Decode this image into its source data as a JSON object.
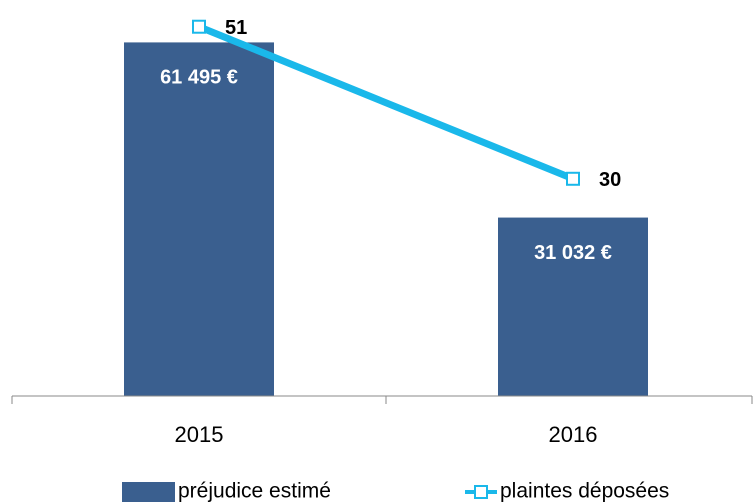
{
  "chart_data": {
    "type": "bar-line",
    "categories": [
      "2015",
      "2016"
    ],
    "series": [
      {
        "name": "préjudice estimé",
        "type": "bar",
        "color": "#3a5f8f",
        "values": [
          61495,
          31032
        ],
        "value_labels": [
          "61 495 €",
          "31 032 €"
        ]
      },
      {
        "name": "plaintes déposées",
        "type": "line",
        "axis": "y2",
        "color": "#1ab8ea",
        "values": [
          51,
          30
        ]
      }
    ],
    "ylim": [
      0,
      68000
    ],
    "y2lim": [
      0,
      54
    ],
    "legend": "bottom"
  }
}
